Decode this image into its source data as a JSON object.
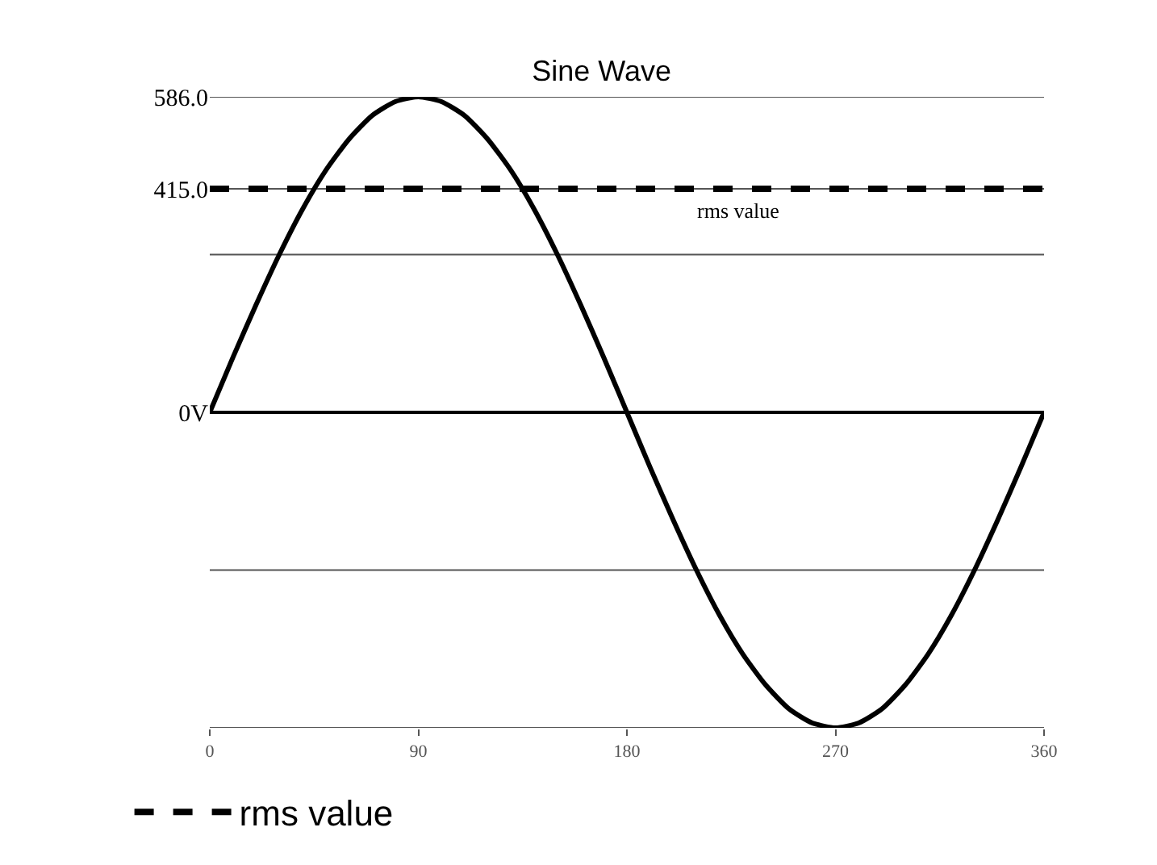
{
  "chart_data": {
    "type": "line",
    "title": "Sine Wave",
    "x": [
      0,
      10,
      20,
      30,
      40,
      50,
      60,
      70,
      80,
      90,
      100,
      110,
      120,
      130,
      140,
      150,
      160,
      170,
      180,
      190,
      200,
      210,
      220,
      230,
      240,
      250,
      260,
      270,
      280,
      290,
      300,
      310,
      320,
      330,
      340,
      350,
      360
    ],
    "series": [
      {
        "color": "#000000",
        "values": [
          0,
          102,
          200,
          293,
          377,
          449,
          507,
          551,
          577,
          586,
          577,
          551,
          507,
          449,
          377,
          293,
          200,
          102,
          0,
          -102,
          -200,
          -293,
          -377,
          -449,
          -507,
          -551,
          -577,
          -586,
          -577,
          -551,
          -507,
          -449,
          -377,
          -293,
          -200,
          -102,
          0
        ]
      }
    ],
    "xlim": [
      0,
      360
    ],
    "xticks": [
      0,
      90,
      180,
      270,
      360
    ],
    "ylim": [
      -586,
      586
    ],
    "yticks": [
      {
        "value": 586,
        "label": "586.0"
      },
      {
        "value": 415,
        "label": "415.0"
      },
      {
        "value": 293,
        "label": null
      },
      {
        "value": 0,
        "label": "0V"
      },
      {
        "value": -293,
        "label": null
      },
      {
        "value": -586,
        "label": null
      }
    ],
    "ref_lines": [
      {
        "axis": "y",
        "value": 415,
        "label": "rms value",
        "color": "#000000",
        "line_style": "dashed"
      }
    ],
    "grid": "y",
    "legend": "bottom",
    "marker": "none",
    "line_style": "solid"
  }
}
